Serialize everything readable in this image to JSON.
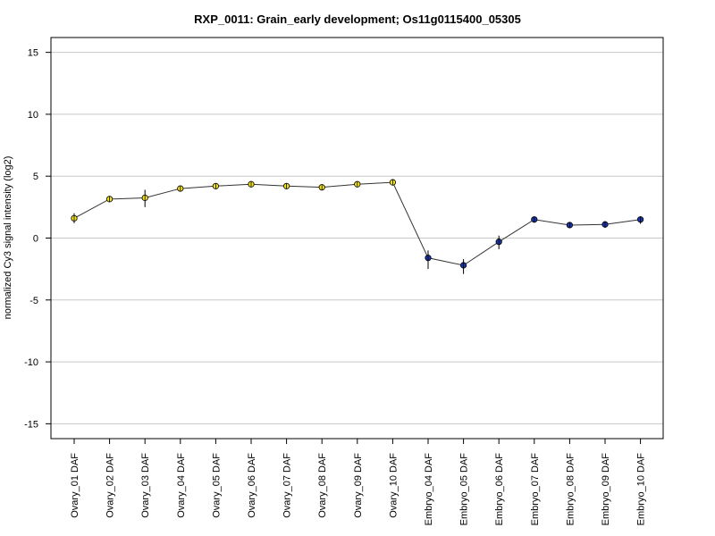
{
  "chart_data": {
    "type": "line",
    "title": "RXP_0011: Grain_early development; Os11g0115400_05305",
    "ylabel": "normalized Cy3 signal intensity (log2)",
    "xlabel": "",
    "ylim": [
      -16.2,
      16.2
    ],
    "yticks": [
      -15,
      -10,
      -5,
      0,
      5,
      10,
      15
    ],
    "grid": "horizontal",
    "categories": [
      "Ovary_01 DAF",
      "Ovary_02 DAF",
      "Ovary_03 DAF",
      "Ovary_04 DAF",
      "Ovary_05 DAF",
      "Ovary_06 DAF",
      "Ovary_07 DAF",
      "Ovary_08 DAF",
      "Ovary_09 DAF",
      "Ovary_10 DAF",
      "Embryo_04 DAF",
      "Embryo_05 DAF",
      "Embryo_06 DAF",
      "Embryo_07 DAF",
      "Embryo_08 DAF",
      "Embryo_09 DAF",
      "Embryo_10 DAF"
    ],
    "values": [
      1.6,
      3.15,
      3.25,
      4.0,
      4.2,
      4.35,
      4.2,
      4.1,
      4.35,
      4.5,
      -1.6,
      -2.2,
      -0.3,
      1.5,
      1.05,
      1.1,
      1.5
    ],
    "error_low": [
      1.2,
      3.0,
      2.5,
      3.85,
      4.05,
      4.2,
      4.05,
      3.95,
      4.2,
      4.3,
      -2.5,
      -2.9,
      -0.9,
      1.35,
      0.95,
      0.85,
      1.15
    ],
    "error_high": [
      2.0,
      3.35,
      3.9,
      4.15,
      4.35,
      4.5,
      4.35,
      4.25,
      4.5,
      4.7,
      -1.0,
      -1.7,
      0.2,
      1.6,
      1.15,
      1.35,
      1.75
    ],
    "point_colors": [
      "#f2e21e",
      "#f2e21e",
      "#f2e21e",
      "#f2e21e",
      "#f2e21e",
      "#f2e21e",
      "#f2e21e",
      "#f2e21e",
      "#f2e21e",
      "#f2e21e",
      "#1a36a8",
      "#1a36a8",
      "#1a36a8",
      "#1a36a8",
      "#1a36a8",
      "#1a36a8",
      "#1a36a8"
    ],
    "line_color": "#333333",
    "grid_color": "#c8c8c8"
  }
}
